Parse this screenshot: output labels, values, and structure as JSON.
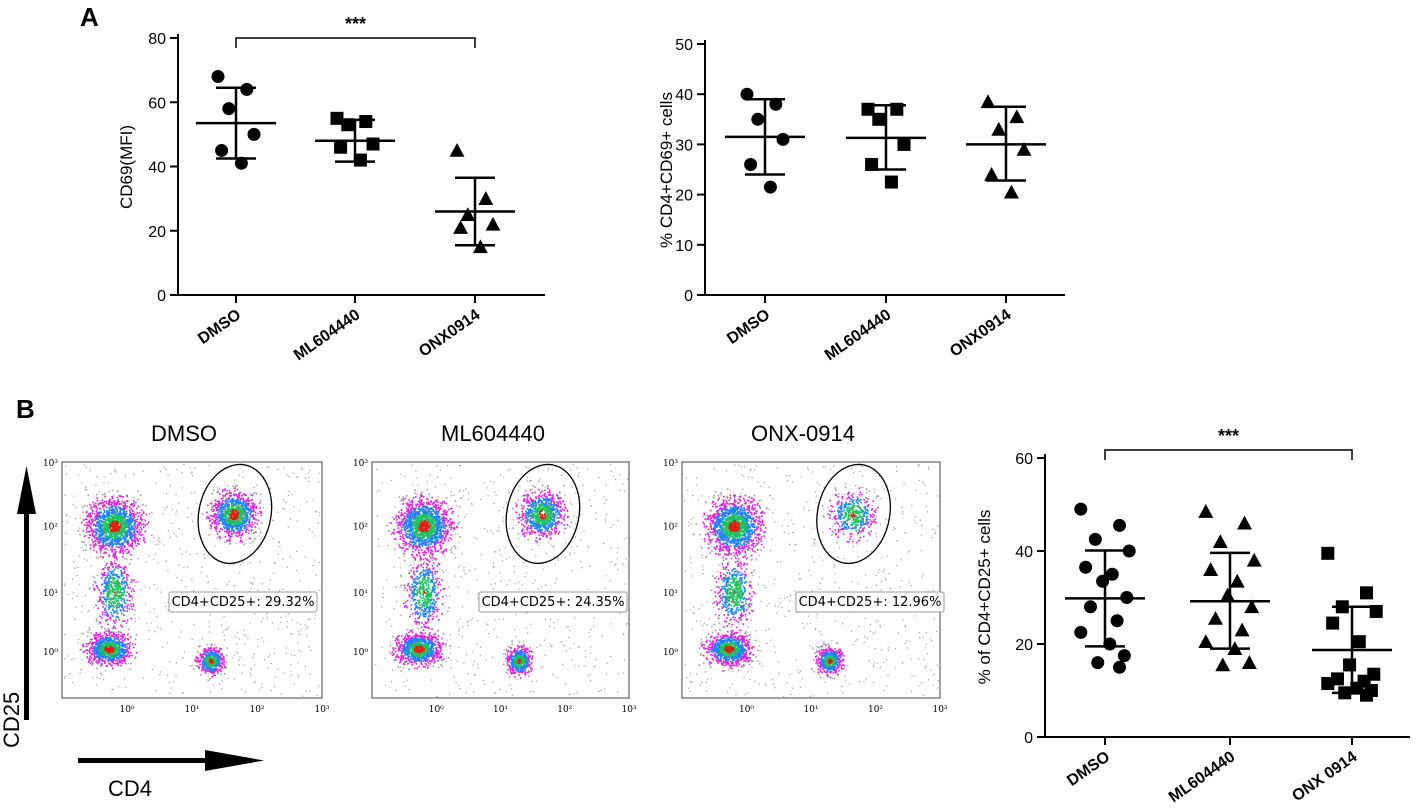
{
  "panel_a_letter": "A",
  "panel_b_letter": "B",
  "chart_data": [
    {
      "id": "A1",
      "type": "scatter",
      "ylabel": "CD69(MFI)",
      "ylim": [
        0,
        80
      ],
      "yticks": [
        0,
        20,
        40,
        60,
        80
      ],
      "categories": [
        "DMSO",
        "ML604440",
        "ONX0914"
      ],
      "markers": [
        "circle",
        "square",
        "triangle"
      ],
      "points": [
        [
          68,
          64,
          58,
          50,
          45,
          41
        ],
        [
          55,
          54,
          53,
          47,
          46,
          42
        ],
        [
          45,
          30,
          25,
          22,
          21,
          15
        ]
      ],
      "means": [
        53.5,
        48,
        26
      ],
      "sd_bounds": [
        [
          42.5,
          64.5
        ],
        [
          41.5,
          54.5
        ],
        [
          15.5,
          36.5
        ]
      ],
      "significance": {
        "from": 0,
        "to": 2,
        "label": "***"
      }
    },
    {
      "id": "A2",
      "type": "scatter",
      "ylabel": "% CD4+CD69+ cells",
      "ylim": [
        0,
        50
      ],
      "yticks": [
        0,
        10,
        20,
        30,
        40,
        50
      ],
      "categories": [
        "DMSO",
        "ML604440",
        "ONX0914"
      ],
      "markers": [
        "circle",
        "square",
        "triangle"
      ],
      "points": [
        [
          40,
          38,
          35,
          31,
          26,
          21.5
        ],
        [
          37,
          37,
          35,
          30,
          26,
          22.5
        ],
        [
          38.5,
          35.5,
          33,
          29,
          24,
          20.5
        ]
      ],
      "means": [
        31.5,
        31.3,
        30
      ],
      "sd_bounds": [
        [
          24,
          39
        ],
        [
          25,
          37.8
        ],
        [
          22.8,
          37.5
        ]
      ],
      "significance": null
    },
    {
      "id": "B",
      "type": "scatter",
      "ylabel": "% of CD4+CD25+ cells",
      "ylim": [
        0,
        60
      ],
      "yticks": [
        0,
        20,
        40,
        60
      ],
      "categories": [
        "DMSO",
        "ML604440",
        "ONX 0914"
      ],
      "markers": [
        "circle",
        "triangle",
        "square"
      ],
      "points": [
        [
          49,
          45.5,
          42.5,
          40,
          36.5,
          35,
          33.5,
          30,
          28,
          25,
          22.5,
          20,
          17.5,
          16,
          15
        ],
        [
          48.5,
          46,
          42,
          38,
          36,
          33.5,
          30.5,
          28,
          25.5,
          23,
          20.5,
          19,
          16,
          15.5
        ],
        [
          39.5,
          31,
          28,
          27,
          24.5,
          20.5,
          15.5,
          13.5,
          12.5,
          12,
          11.5,
          10.5,
          10,
          9.5,
          9
        ]
      ],
      "means": [
        29.8,
        29.2,
        18.7
      ],
      "sd_bounds": [
        [
          19.5,
          40.1
        ],
        [
          19,
          39.6
        ],
        [
          9.5,
          28
        ]
      ],
      "significance": {
        "from": 0,
        "to": 2,
        "label": "***"
      }
    }
  ],
  "flow": {
    "panels": [
      {
        "title": "DMSO",
        "gate_label": "CD4+CD25+: 29.32%",
        "gate_percent": 29.32
      },
      {
        "title": "ML604440",
        "gate_label": "CD4+CD25+: 24.35%",
        "gate_percent": 24.35
      },
      {
        "title": "ONX-0914",
        "gate_label": "CD4+CD25+: 12.96%",
        "gate_percent": 12.96
      }
    ],
    "y_axis_label": "CD25",
    "x_axis_label": "CD4",
    "tick_labels": [
      "10⁰",
      "10¹",
      "10²",
      "10³"
    ]
  },
  "colors": {
    "ink": "#000000",
    "flow_low": "#a0a0a0",
    "flow_magenta": "#e020e0",
    "flow_blue": "#2080ff",
    "flow_green": "#20c060",
    "flow_red": "#e02010"
  }
}
